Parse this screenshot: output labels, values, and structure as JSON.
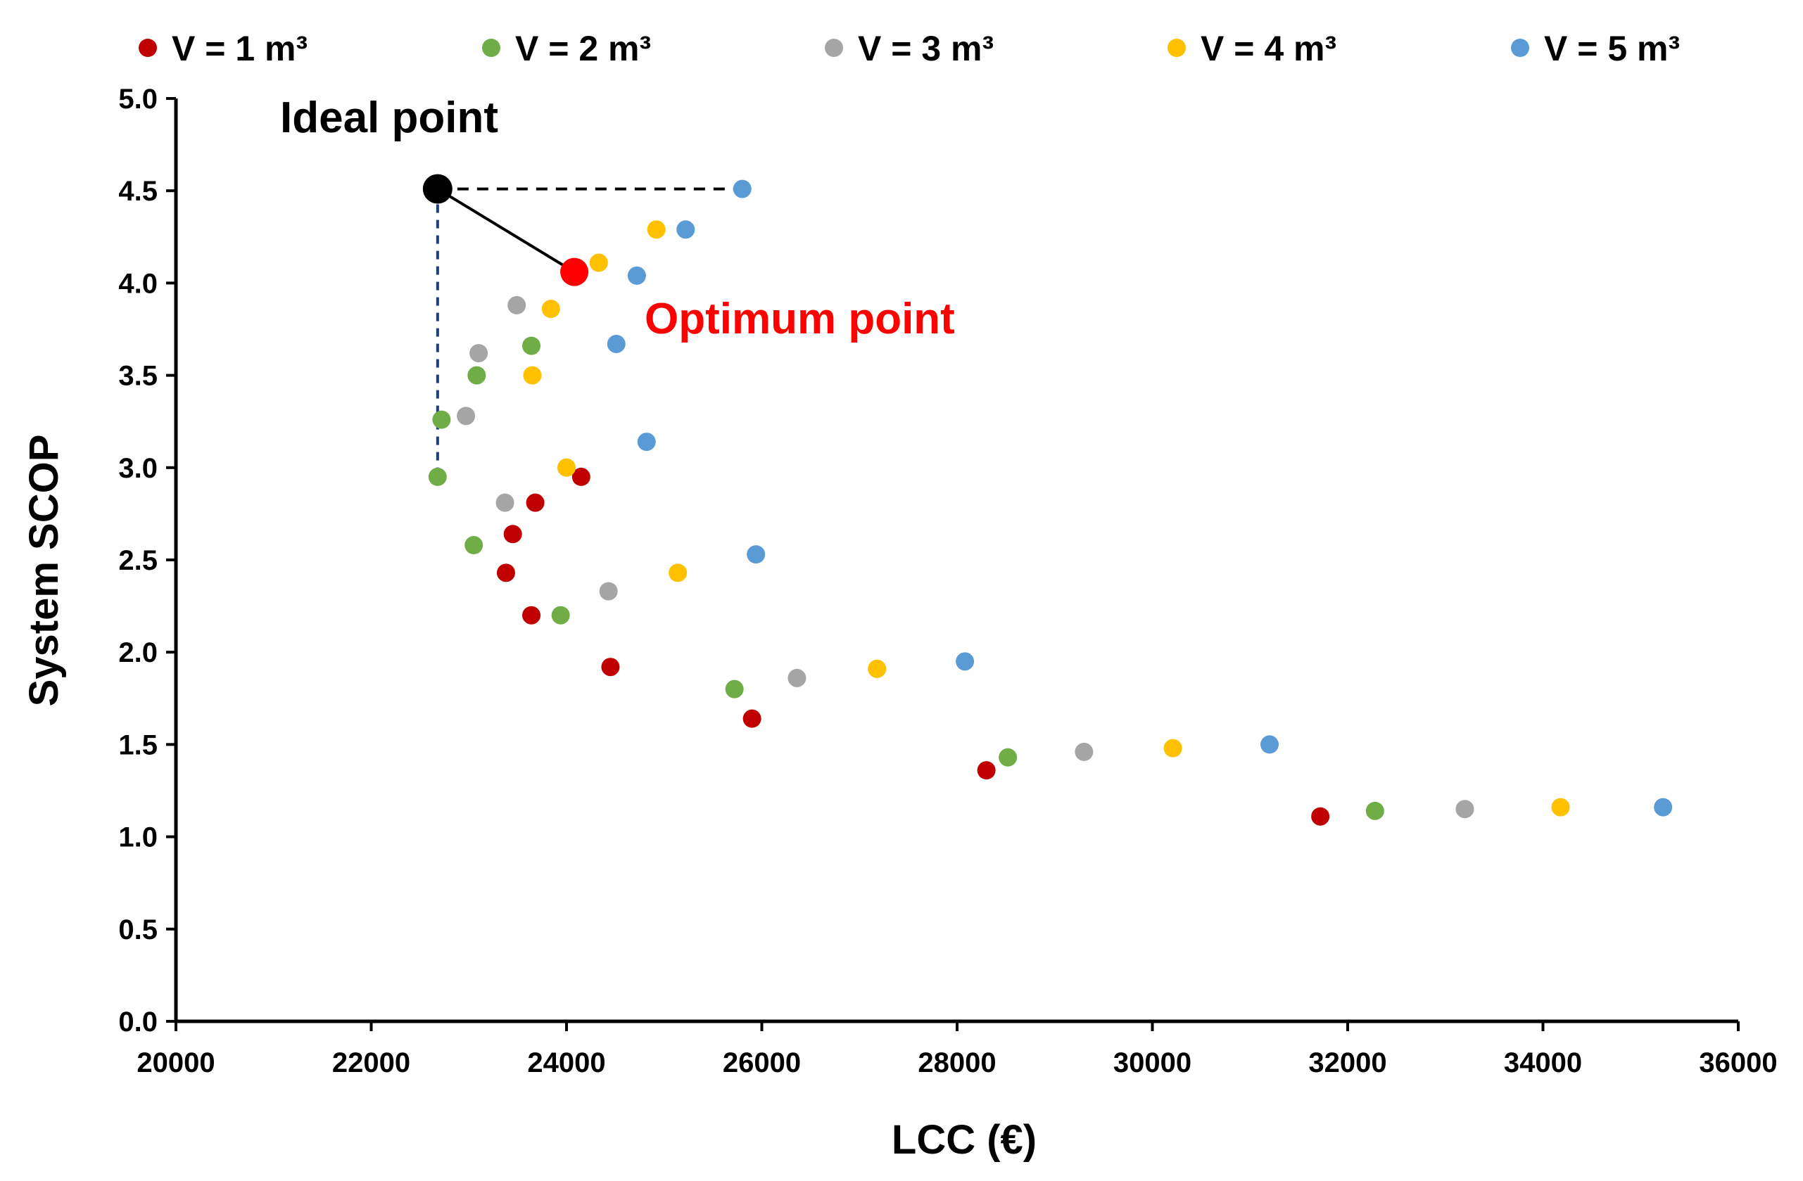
{
  "chart_data": {
    "type": "scatter",
    "xlabel": "LCC (€)",
    "ylabel": "System SCOP",
    "xlim": [
      20000,
      36000
    ],
    "ylim": [
      0.0,
      5.0
    ],
    "xticks": [
      "20000",
      "22000",
      "24000",
      "26000",
      "28000",
      "30000",
      "32000",
      "34000",
      "36000"
    ],
    "yticks": [
      "0.0",
      "0.5",
      "1.0",
      "1.5",
      "2.0",
      "2.5",
      "3.0",
      "3.5",
      "4.0",
      "4.5",
      "5.0"
    ],
    "legend_position": "top",
    "series": [
      {
        "name": "V = 1 m³",
        "color": "#c00000",
        "points": [
          [
            24150,
            2.95
          ],
          [
            23680,
            2.81
          ],
          [
            23450,
            2.64
          ],
          [
            23380,
            2.43
          ],
          [
            23640,
            2.2
          ],
          [
            24450,
            1.92
          ],
          [
            25900,
            1.64
          ],
          [
            28300,
            1.36
          ],
          [
            31720,
            1.11
          ]
        ]
      },
      {
        "name": "V = 2 m³",
        "color": "#70ad47",
        "points": [
          [
            23640,
            3.66
          ],
          [
            23080,
            3.5
          ],
          [
            22720,
            3.26
          ],
          [
            22680,
            2.95
          ],
          [
            23050,
            2.58
          ],
          [
            23940,
            2.2
          ],
          [
            25720,
            1.8
          ],
          [
            28520,
            1.43
          ],
          [
            32280,
            1.14
          ]
        ]
      },
      {
        "name": "V = 3 m³",
        "color": "#a5a5a5",
        "points": [
          [
            23490,
            3.88
          ],
          [
            23100,
            3.62
          ],
          [
            22970,
            3.28
          ],
          [
            23370,
            2.81
          ],
          [
            24430,
            2.33
          ],
          [
            26360,
            1.86
          ],
          [
            29300,
            1.46
          ],
          [
            33200,
            1.15
          ]
        ]
      },
      {
        "name": "V = 4 m³",
        "color": "#ffc000",
        "points": [
          [
            24920,
            4.29
          ],
          [
            24330,
            4.11
          ],
          [
            23840,
            3.86
          ],
          [
            23650,
            3.5
          ],
          [
            24000,
            3.0
          ],
          [
            25140,
            2.43
          ],
          [
            27180,
            1.91
          ],
          [
            30210,
            1.48
          ],
          [
            34180,
            1.16
          ]
        ]
      },
      {
        "name": "V = 5 m³",
        "color": "#5b9bd5",
        "points": [
          [
            25800,
            4.51
          ],
          [
            25220,
            4.29
          ],
          [
            24720,
            4.04
          ],
          [
            24510,
            3.67
          ],
          [
            24820,
            3.14
          ],
          [
            25940,
            2.53
          ],
          [
            28080,
            1.95
          ],
          [
            31200,
            1.5
          ],
          [
            35230,
            1.16
          ]
        ]
      }
    ],
    "annotations": {
      "ideal_point": {
        "label": "Ideal point",
        "x": 22680,
        "y": 4.51,
        "color": "#000000"
      },
      "optimum_point": {
        "label": "Optimum point",
        "x": 24080,
        "y": 4.06,
        "color": "#ff0000"
      }
    }
  }
}
